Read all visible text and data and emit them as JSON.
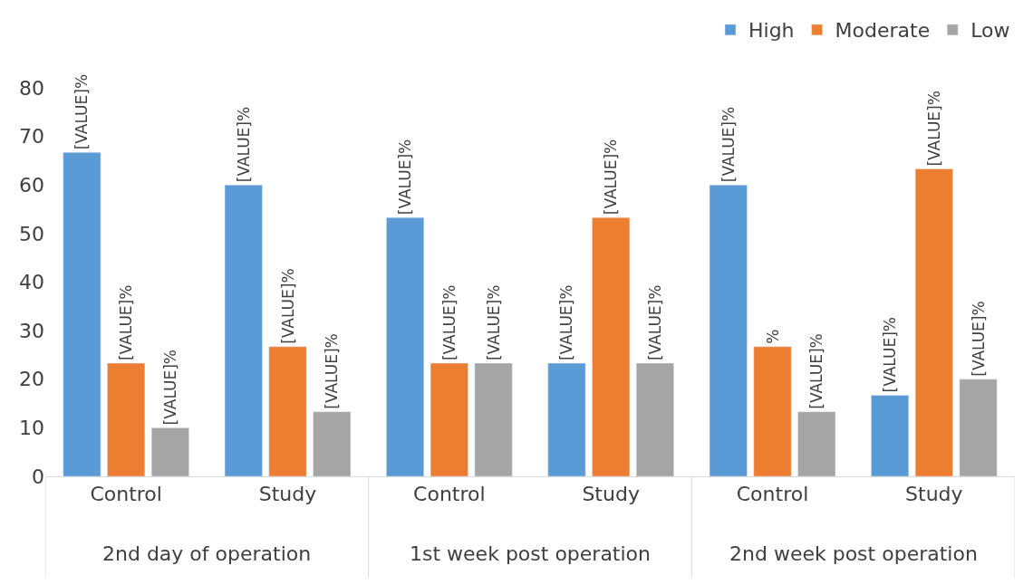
{
  "chart_data": {
    "type": "bar",
    "categories": [
      "Control",
      "Study",
      "Control",
      "Study",
      "Control",
      "Study"
    ],
    "series": [
      {
        "name": "High",
        "color": "#5b9bd5",
        "values": [
          66.7,
          60,
          53.3,
          23.3,
          60,
          16.7
        ],
        "value_labels": [
          "[VALUE]%",
          "[VALUE]%",
          "[VALUE]%",
          "[VALUE]%",
          "[VALUE]%",
          "[VALUE]%"
        ]
      },
      {
        "name": "Moderate",
        "color": "#ed7d31",
        "values": [
          23.3,
          26.7,
          23.3,
          53.3,
          26.7,
          63.3
        ],
        "value_labels": [
          "[VALUE]%",
          "[VALUE]%",
          "[VALUE]%",
          "[VALUE]%",
          "%",
          "[VALUE]%"
        ]
      },
      {
        "name": "Low",
        "color": "#a5a5a5",
        "values": [
          10,
          13.3,
          23.3,
          23.3,
          13.3,
          20
        ],
        "value_labels": [
          "[VALUE]%",
          "[VALUE]%",
          "[VALUE]%",
          "[VALUE]%",
          "[VALUE]%",
          "[VALUE]%"
        ]
      }
    ],
    "annotations": [
      "2nd day of operation",
      "1st week post operation",
      "2nd week post operation"
    ],
    "ylim": [
      0,
      80
    ],
    "yticks": [
      0,
      10,
      20,
      30,
      40,
      50,
      60,
      70,
      80
    ],
    "legend": "top right"
  }
}
